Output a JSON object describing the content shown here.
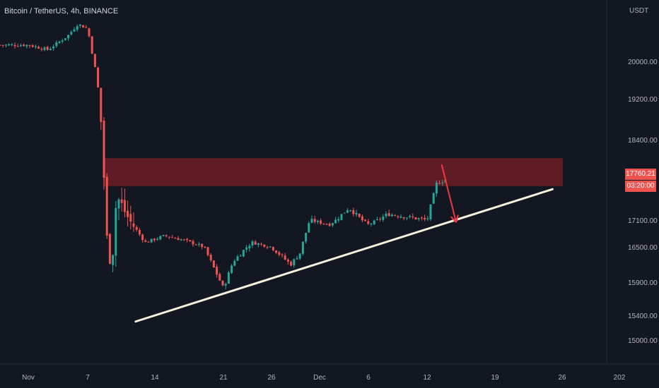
{
  "header": {
    "symbol": "Bitcoin / TetherUS, 4h, BINANCE"
  },
  "price_axis": {
    "unit_label": "USDT",
    "last_price": "17760.21",
    "countdown": "03:20:00"
  },
  "colors": {
    "background": "#131722",
    "up": "#26a69a",
    "down": "#ef5350",
    "zone": "#6e1d24",
    "trendline": "#f5f0dc",
    "arrow": "#f23645",
    "axis_text": "#b2b5be"
  },
  "chart_data": {
    "type": "candlestick",
    "y_ticks": [
      "20000.00",
      "19200.00",
      "18400.00",
      "17100.00",
      "16500.00",
      "15900.00",
      "15400.00",
      "15000.00"
    ],
    "x_ticks": [
      "Nov",
      "7",
      "14",
      "21",
      "26",
      "Dec",
      "6",
      "12",
      "19",
      "26",
      "202"
    ],
    "price_path": [
      {
        "date": "Nov 1",
        "close": 20350
      },
      {
        "date": "Nov 3",
        "close": 20250
      },
      {
        "date": "Nov 5",
        "close": 20550
      },
      {
        "date": "Nov 6",
        "close": 20800
      },
      {
        "date": "Nov 7",
        "close": 20700
      },
      {
        "date": "Nov 8",
        "close": 19600
      },
      {
        "date": "Nov 8.5",
        "close": 18500
      },
      {
        "date": "Nov 9",
        "close": 16700
      },
      {
        "date": "Nov 9.5",
        "close": 16100
      },
      {
        "date": "Nov 10",
        "close": 17500
      },
      {
        "date": "Nov 11",
        "close": 17200
      },
      {
        "date": "Nov 13",
        "close": 16600
      },
      {
        "date": "Nov 15",
        "close": 16750
      },
      {
        "date": "Nov 17",
        "close": 16650
      },
      {
        "date": "Nov 19",
        "close": 16500
      },
      {
        "date": "Nov 21",
        "close": 15800
      },
      {
        "date": "Nov 22",
        "close": 16250
      },
      {
        "date": "Nov 24",
        "close": 16600
      },
      {
        "date": "Nov 26",
        "close": 16500
      },
      {
        "date": "Nov 28",
        "close": 16200
      },
      {
        "date": "Nov 29",
        "close": 16400
      },
      {
        "date": "Nov 30",
        "close": 17100
      },
      {
        "date": "Dec 2",
        "close": 17000
      },
      {
        "date": "Dec 4",
        "close": 17300
      },
      {
        "date": "Dec 6",
        "close": 17000
      },
      {
        "date": "Dec 8",
        "close": 17200
      },
      {
        "date": "Dec 10",
        "close": 17150
      },
      {
        "date": "Dec 12",
        "close": 17100
      },
      {
        "date": "Dec 13",
        "close": 17700
      },
      {
        "date": "Dec 14",
        "close": 17760
      }
    ],
    "resistance_zone": {
      "low": 17650,
      "high": 18100
    },
    "ascending_trendline": {
      "start": {
        "date": "Nov 12",
        "price": 15300
      },
      "end": {
        "date": "Dec 25",
        "price": 17600
      }
    },
    "projection_arrow": {
      "from": {
        "date": "Dec 13.5",
        "price": 18000
      },
      "to": {
        "date": "Dec 15",
        "price": 17050
      }
    }
  }
}
